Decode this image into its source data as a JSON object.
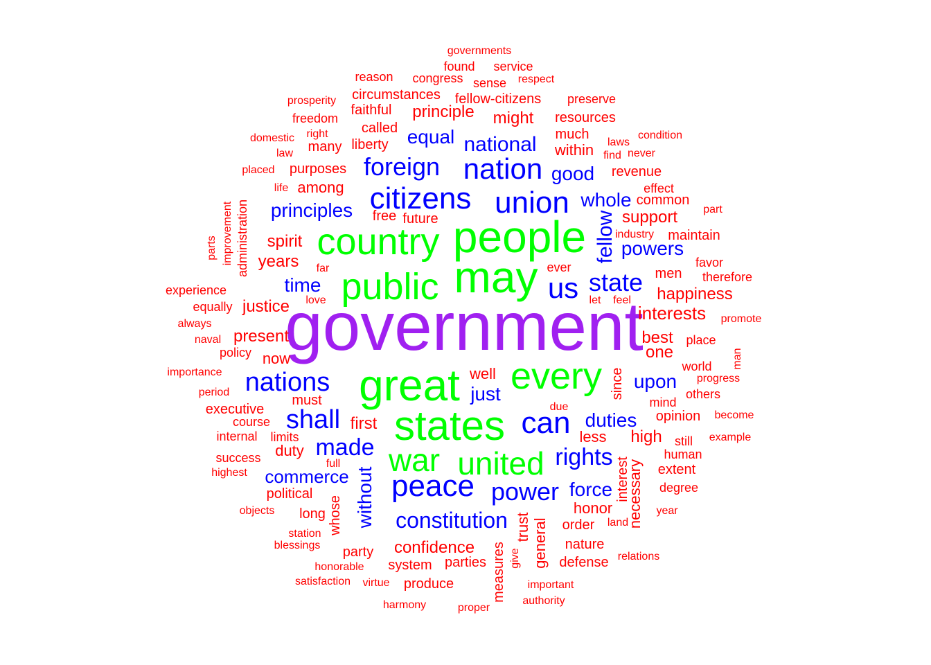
{
  "colors": {
    "tier1": "#a020f0",
    "tier2": "#00ff00",
    "tier3": "#0000ff",
    "tier4": "#ff0000"
  },
  "words": [
    {
      "text": "government",
      "color": "tier1"
    },
    {
      "text": "people",
      "color": "tier2"
    },
    {
      "text": "may",
      "color": "tier2"
    },
    {
      "text": "country",
      "color": "tier2"
    },
    {
      "text": "public",
      "color": "tier2"
    },
    {
      "text": "great",
      "color": "tier2"
    },
    {
      "text": "every",
      "color": "tier2"
    },
    {
      "text": "states",
      "color": "tier2"
    },
    {
      "text": "united",
      "color": "tier2"
    },
    {
      "text": "war",
      "color": "tier2"
    },
    {
      "text": "citizens",
      "color": "tier3"
    },
    {
      "text": "union",
      "color": "tier3"
    },
    {
      "text": "nation",
      "color": "tier3"
    },
    {
      "text": "foreign",
      "color": "tier3"
    },
    {
      "text": "national",
      "color": "tier3"
    },
    {
      "text": "equal",
      "color": "tier3"
    },
    {
      "text": "good",
      "color": "tier3"
    },
    {
      "text": "principles",
      "color": "tier3"
    },
    {
      "text": "whole",
      "color": "tier3"
    },
    {
      "text": "fellow",
      "color": "tier3"
    },
    {
      "text": "us",
      "color": "tier3"
    },
    {
      "text": "state",
      "color": "tier3"
    },
    {
      "text": "powers",
      "color": "tier3"
    },
    {
      "text": "time",
      "color": "tier3"
    },
    {
      "text": "nations",
      "color": "tier3"
    },
    {
      "text": "shall",
      "color": "tier3"
    },
    {
      "text": "can",
      "color": "tier3"
    },
    {
      "text": "just",
      "color": "tier3"
    },
    {
      "text": "upon",
      "color": "tier3"
    },
    {
      "text": "duties",
      "color": "tier3"
    },
    {
      "text": "made",
      "color": "tier3"
    },
    {
      "text": "rights",
      "color": "tier3"
    },
    {
      "text": "peace",
      "color": "tier3"
    },
    {
      "text": "commerce",
      "color": "tier3"
    },
    {
      "text": "power",
      "color": "tier3"
    },
    {
      "text": "force",
      "color": "tier3"
    },
    {
      "text": "without",
      "color": "tier3"
    },
    {
      "text": "constitution",
      "color": "tier3"
    },
    {
      "text": "governments",
      "color": "tier4"
    },
    {
      "text": "found",
      "color": "tier4"
    },
    {
      "text": "service",
      "color": "tier4"
    },
    {
      "text": "reason",
      "color": "tier4"
    },
    {
      "text": "congress",
      "color": "tier4"
    },
    {
      "text": "sense",
      "color": "tier4"
    },
    {
      "text": "respect",
      "color": "tier4"
    },
    {
      "text": "prosperity",
      "color": "tier4"
    },
    {
      "text": "circumstances",
      "color": "tier4"
    },
    {
      "text": "fellow-citizens",
      "color": "tier4"
    },
    {
      "text": "preserve",
      "color": "tier4"
    },
    {
      "text": "faithful",
      "color": "tier4"
    },
    {
      "text": "principle",
      "color": "tier4"
    },
    {
      "text": "freedom",
      "color": "tier4"
    },
    {
      "text": "might",
      "color": "tier4"
    },
    {
      "text": "resources",
      "color": "tier4"
    },
    {
      "text": "called",
      "color": "tier4"
    },
    {
      "text": "right",
      "color": "tier4"
    },
    {
      "text": "domestic",
      "color": "tier4"
    },
    {
      "text": "much",
      "color": "tier4"
    },
    {
      "text": "condition",
      "color": "tier4"
    },
    {
      "text": "laws",
      "color": "tier4"
    },
    {
      "text": "many",
      "color": "tier4"
    },
    {
      "text": "liberty",
      "color": "tier4"
    },
    {
      "text": "law",
      "color": "tier4"
    },
    {
      "text": "within",
      "color": "tier4"
    },
    {
      "text": "find",
      "color": "tier4"
    },
    {
      "text": "never",
      "color": "tier4"
    },
    {
      "text": "placed",
      "color": "tier4"
    },
    {
      "text": "purposes",
      "color": "tier4"
    },
    {
      "text": "revenue",
      "color": "tier4"
    },
    {
      "text": "life",
      "color": "tier4"
    },
    {
      "text": "among",
      "color": "tier4"
    },
    {
      "text": "effect",
      "color": "tier4"
    },
    {
      "text": "common",
      "color": "tier4"
    },
    {
      "text": "improvement",
      "color": "tier4"
    },
    {
      "text": "administration",
      "color": "tier4"
    },
    {
      "text": "part",
      "color": "tier4"
    },
    {
      "text": "free",
      "color": "tier4"
    },
    {
      "text": "support",
      "color": "tier4"
    },
    {
      "text": "future",
      "color": "tier4"
    },
    {
      "text": "industry",
      "color": "tier4"
    },
    {
      "text": "maintain",
      "color": "tier4"
    },
    {
      "text": "parts",
      "color": "tier4"
    },
    {
      "text": "spirit",
      "color": "tier4"
    },
    {
      "text": "years",
      "color": "tier4"
    },
    {
      "text": "favor",
      "color": "tier4"
    },
    {
      "text": "far",
      "color": "tier4"
    },
    {
      "text": "ever",
      "color": "tier4"
    },
    {
      "text": "men",
      "color": "tier4"
    },
    {
      "text": "therefore",
      "color": "tier4"
    },
    {
      "text": "experience",
      "color": "tier4"
    },
    {
      "text": "happiness",
      "color": "tier4"
    },
    {
      "text": "love",
      "color": "tier4"
    },
    {
      "text": "let",
      "color": "tier4"
    },
    {
      "text": "feel",
      "color": "tier4"
    },
    {
      "text": "equally",
      "color": "tier4"
    },
    {
      "text": "justice",
      "color": "tier4"
    },
    {
      "text": "interests",
      "color": "tier4"
    },
    {
      "text": "always",
      "color": "tier4"
    },
    {
      "text": "promote",
      "color": "tier4"
    },
    {
      "text": "naval",
      "color": "tier4"
    },
    {
      "text": "present",
      "color": "tier4"
    },
    {
      "text": "best",
      "color": "tier4"
    },
    {
      "text": "place",
      "color": "tier4"
    },
    {
      "text": "policy",
      "color": "tier4"
    },
    {
      "text": "one",
      "color": "tier4"
    },
    {
      "text": "man",
      "color": "tier4"
    },
    {
      "text": "now",
      "color": "tier4"
    },
    {
      "text": "world",
      "color": "tier4"
    },
    {
      "text": "importance",
      "color": "tier4"
    },
    {
      "text": "well",
      "color": "tier4"
    },
    {
      "text": "progress",
      "color": "tier4"
    },
    {
      "text": "since",
      "color": "tier4"
    },
    {
      "text": "period",
      "color": "tier4"
    },
    {
      "text": "others",
      "color": "tier4"
    },
    {
      "text": "must",
      "color": "tier4"
    },
    {
      "text": "mind",
      "color": "tier4"
    },
    {
      "text": "executive",
      "color": "tier4"
    },
    {
      "text": "due",
      "color": "tier4"
    },
    {
      "text": "opinion",
      "color": "tier4"
    },
    {
      "text": "become",
      "color": "tier4"
    },
    {
      "text": "course",
      "color": "tier4"
    },
    {
      "text": "first",
      "color": "tier4"
    },
    {
      "text": "internal",
      "color": "tier4"
    },
    {
      "text": "limits",
      "color": "tier4"
    },
    {
      "text": "less",
      "color": "tier4"
    },
    {
      "text": "high",
      "color": "tier4"
    },
    {
      "text": "example",
      "color": "tier4"
    },
    {
      "text": "still",
      "color": "tier4"
    },
    {
      "text": "duty",
      "color": "tier4"
    },
    {
      "text": "human",
      "color": "tier4"
    },
    {
      "text": "success",
      "color": "tier4"
    },
    {
      "text": "full",
      "color": "tier4"
    },
    {
      "text": "highest",
      "color": "tier4"
    },
    {
      "text": "interest",
      "color": "tier4"
    },
    {
      "text": "extent",
      "color": "tier4"
    },
    {
      "text": "degree",
      "color": "tier4"
    },
    {
      "text": "political",
      "color": "tier4"
    },
    {
      "text": "necessary",
      "color": "tier4"
    },
    {
      "text": "objects",
      "color": "tier4"
    },
    {
      "text": "long",
      "color": "tier4"
    },
    {
      "text": "honor",
      "color": "tier4"
    },
    {
      "text": "whose",
      "color": "tier4"
    },
    {
      "text": "year",
      "color": "tier4"
    },
    {
      "text": "trust",
      "color": "tier4"
    },
    {
      "text": "order",
      "color": "tier4"
    },
    {
      "text": "land",
      "color": "tier4"
    },
    {
      "text": "station",
      "color": "tier4"
    },
    {
      "text": "general",
      "color": "tier4"
    },
    {
      "text": "blessings",
      "color": "tier4"
    },
    {
      "text": "confidence",
      "color": "tier4"
    },
    {
      "text": "nature",
      "color": "tier4"
    },
    {
      "text": "party",
      "color": "tier4"
    },
    {
      "text": "relations",
      "color": "tier4"
    },
    {
      "text": "measures",
      "color": "tier4"
    },
    {
      "text": "honorable",
      "color": "tier4"
    },
    {
      "text": "system",
      "color": "tier4"
    },
    {
      "text": "parties",
      "color": "tier4"
    },
    {
      "text": "give",
      "color": "tier4"
    },
    {
      "text": "defense",
      "color": "tier4"
    },
    {
      "text": "satisfaction",
      "color": "tier4"
    },
    {
      "text": "virtue",
      "color": "tier4"
    },
    {
      "text": "produce",
      "color": "tier4"
    },
    {
      "text": "important",
      "color": "tier4"
    },
    {
      "text": "authority",
      "color": "tier4"
    },
    {
      "text": "harmony",
      "color": "tier4"
    },
    {
      "text": "proper",
      "color": "tier4"
    }
  ]
}
